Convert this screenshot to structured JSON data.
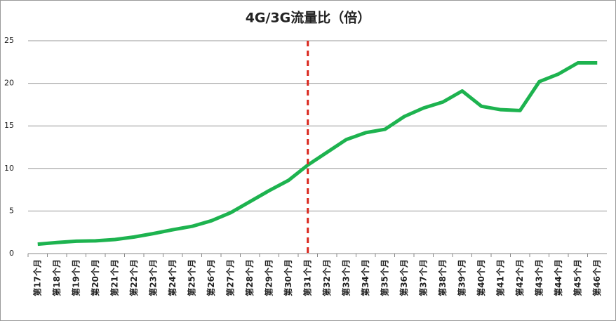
{
  "chart_data": {
    "type": "line",
    "title": "4G/3G流量比（倍）",
    "categories": [
      "第17个月",
      "第18个月",
      "第19个月",
      "第20个月",
      "第21个月",
      "第22个月",
      "第23个月",
      "第24个月",
      "第25个月",
      "第26个月",
      "第27个月",
      "第28个月",
      "第29个月",
      "第30个月",
      "第31个月",
      "第32个月",
      "第33个月",
      "第34个月",
      "第35个月",
      "第36个月",
      "第37个月",
      "第38个月",
      "第39个月",
      "第40个月",
      "第41个月",
      "第42个月",
      "第43个月",
      "第44个月",
      "第45个月",
      "第46个月"
    ],
    "values": [
      1.1,
      1.3,
      1.45,
      1.5,
      1.65,
      1.95,
      2.35,
      2.8,
      3.2,
      3.85,
      4.8,
      6.1,
      7.4,
      8.6,
      10.4,
      11.9,
      13.4,
      14.2,
      14.6,
      16.1,
      17.1,
      17.8,
      19.1,
      17.3,
      16.9,
      16.8,
      20.2,
      21.1,
      22.4,
      22.4
    ],
    "color": "#1db34f",
    "ylim": [
      0,
      25
    ],
    "yticks": [
      0,
      5,
      10,
      15,
      20,
      25
    ],
    "grid": true,
    "reference_line": {
      "category_index": 14,
      "color": "#d9261c",
      "style": "dashed"
    }
  }
}
